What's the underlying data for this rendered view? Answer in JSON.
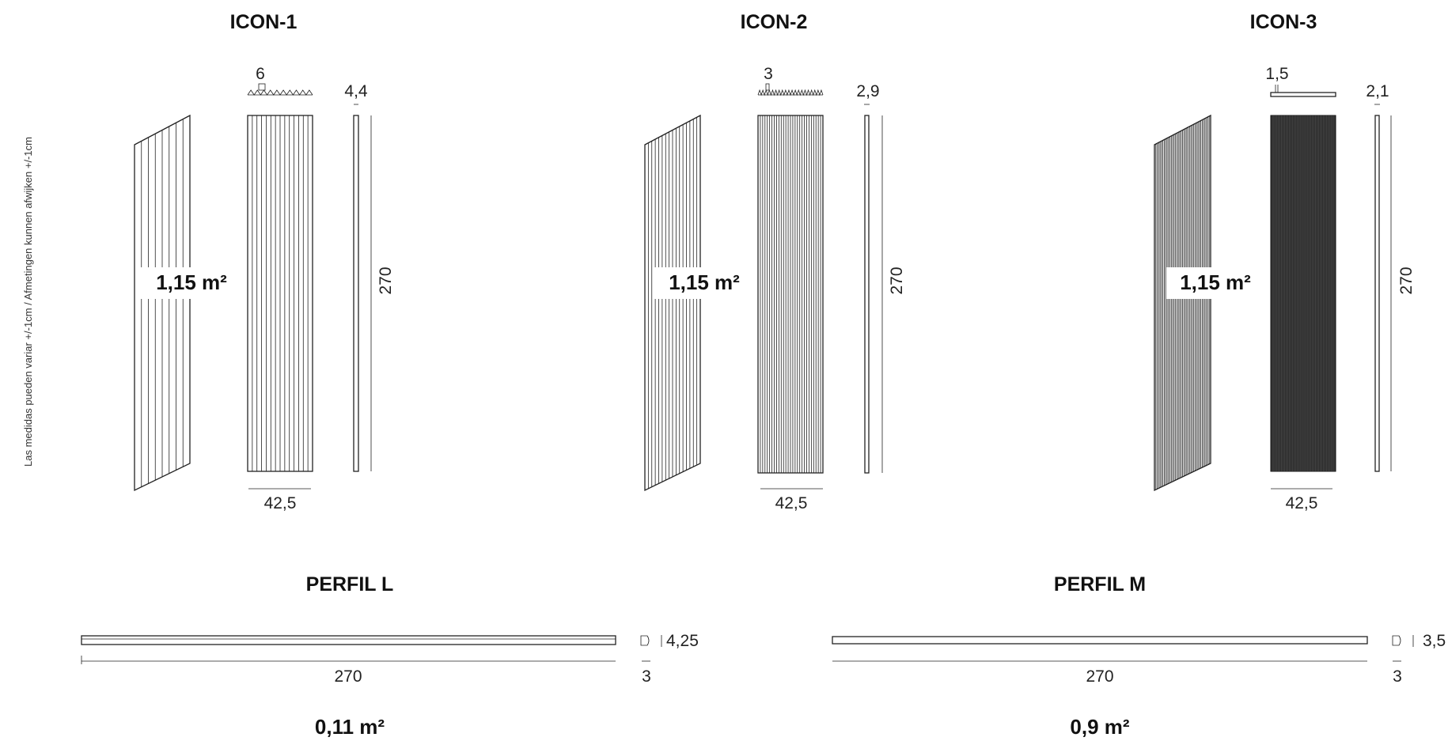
{
  "side_note": "Las medidas pueden variar +/-1cm  /  Afmetingen kunnen afwijken  +/-1cm",
  "panels": [
    {
      "title": "ICON-1",
      "rib_width": "6",
      "depth": "4,4",
      "height": "270",
      "width": "42,5",
      "area": "1,15 m²"
    },
    {
      "title": "ICON-2",
      "rib_width": "3",
      "depth": "2,9",
      "height": "270",
      "width": "42,5",
      "area": "1,15 m²"
    },
    {
      "title": "ICON-3",
      "rib_width": "1,5",
      "depth": "2,1",
      "height": "270",
      "width": "42,5",
      "area": "1,15 m²"
    }
  ],
  "profiles": [
    {
      "title": "PERFIL L",
      "length": "270",
      "thickness": "4,25",
      "depth": "3",
      "area": "0,11 m²"
    },
    {
      "title": "PERFIL M",
      "length": "270",
      "thickness": "3,5",
      "depth": "3",
      "area": "0,9 m²"
    }
  ]
}
